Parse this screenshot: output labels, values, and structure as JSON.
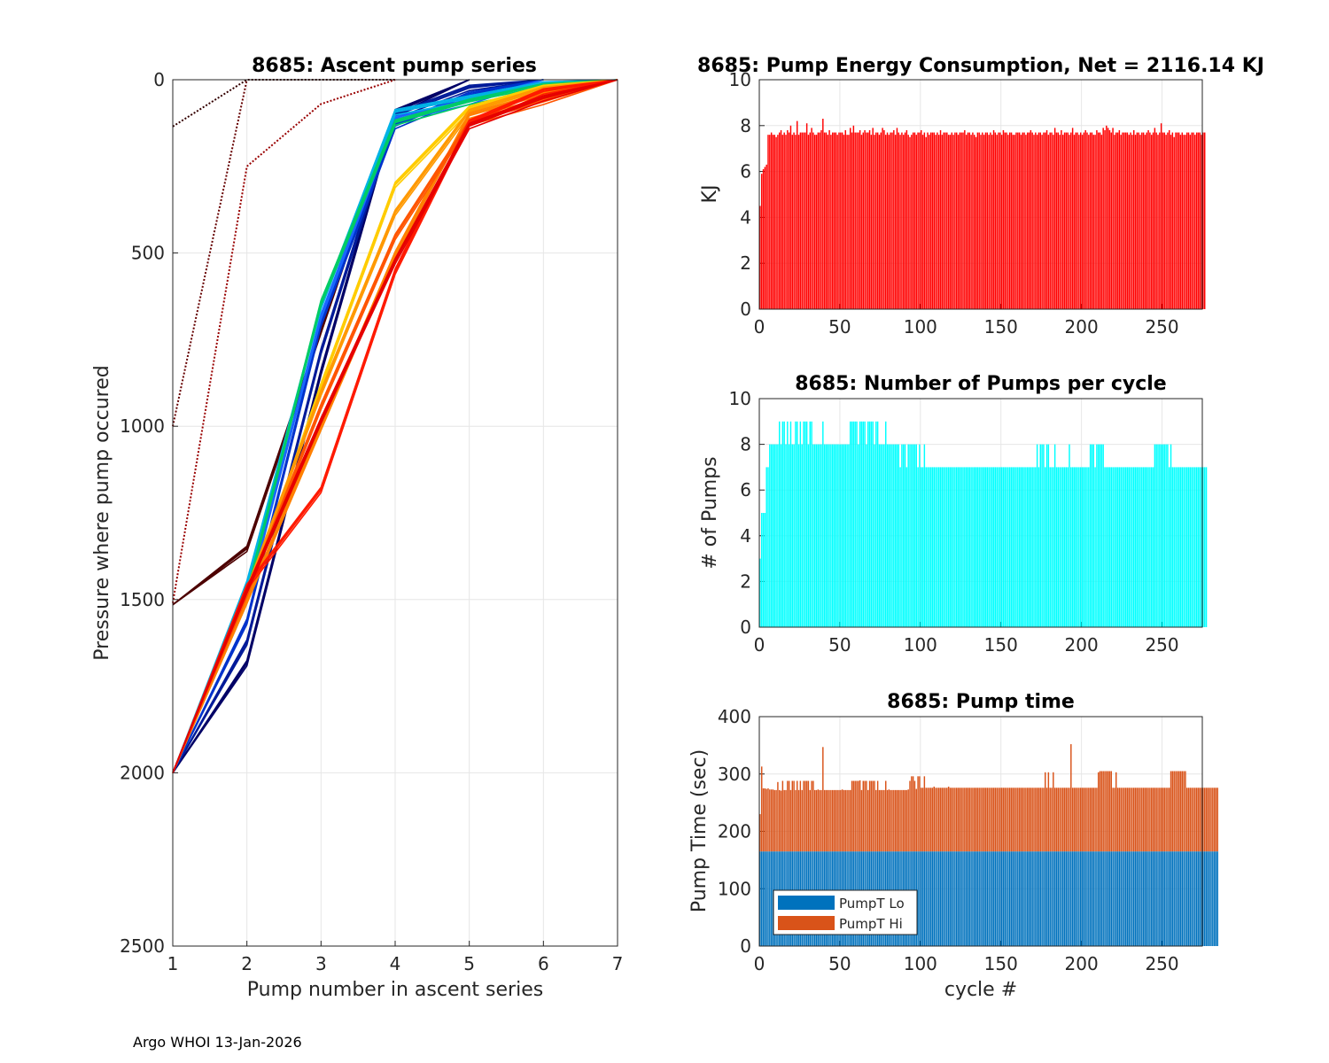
{
  "footer": "Argo WHOI 13-Jan-2026",
  "chart_data": [
    {
      "type": "line",
      "title": "8685: Ascent pump series",
      "xlabel": "Pump number in ascent series",
      "ylabel": "Pressure where pump occured",
      "xlim": [
        1,
        7
      ],
      "ylim": [
        0,
        2500
      ],
      "y_reversed": true,
      "xticks": [
        1,
        2,
        3,
        4,
        5,
        6,
        7
      ],
      "yticks": [
        0,
        500,
        1000,
        1500,
        2000,
        2500
      ],
      "grid": true,
      "color_mapping": "line color varies by cycle: dark red (early) through blue/cyan to orange/red (late)",
      "series": [
        {
          "name": "cycle 0",
          "color": "#330000",
          "style": "dotted",
          "x": [
            1,
            2,
            3,
            4
          ],
          "y": [
            135,
            0,
            0,
            0
          ]
        },
        {
          "name": "cycle 1",
          "color": "#660000",
          "style": "dotted",
          "x": [
            1,
            2
          ],
          "y": [
            1000,
            0
          ]
        },
        {
          "name": "cycle 2",
          "color": "#990000",
          "style": "dotted",
          "x": [
            1,
            2,
            3,
            4
          ],
          "y": [
            1510,
            250,
            70,
            0
          ]
        },
        {
          "name": "cycle 3",
          "color": "#4d0000",
          "style": "solid",
          "x": [
            1,
            2,
            3,
            4
          ],
          "y": [
            1515,
            1350,
            720,
            100
          ]
        },
        {
          "name": "cycle 5",
          "color": "#000066",
          "style": "solid",
          "x": [
            1,
            2,
            3,
            4,
            5
          ],
          "y": [
            2000,
            1680,
            840,
            90,
            0
          ]
        },
        {
          "name": "cycle 30",
          "color": "#001a99",
          "style": "solid",
          "x": [
            1,
            2,
            3,
            4,
            5,
            6
          ],
          "y": [
            2000,
            1620,
            780,
            100,
            20,
            0
          ]
        },
        {
          "name": "cycle 60",
          "color": "#0033cc",
          "style": "solid",
          "x": [
            1,
            2,
            3,
            4,
            5,
            6
          ],
          "y": [
            2000,
            1560,
            700,
            130,
            40,
            0
          ]
        },
        {
          "name": "cycle 90",
          "color": "#1a66ff",
          "style": "solid",
          "x": [
            1,
            2,
            3,
            4,
            5,
            6
          ],
          "y": [
            2000,
            1500,
            680,
            110,
            60,
            0
          ]
        },
        {
          "name": "cycle 120",
          "color": "#00b3e6",
          "style": "solid",
          "x": [
            1,
            2,
            3,
            4,
            5,
            6,
            7
          ],
          "y": [
            2000,
            1450,
            650,
            90,
            50,
            10,
            0
          ]
        },
        {
          "name": "cycle 150",
          "color": "#00cc66",
          "style": "solid",
          "x": [
            1,
            2,
            3,
            4,
            5,
            6,
            7
          ],
          "y": [
            2000,
            1480,
            640,
            120,
            60,
            15,
            0
          ]
        },
        {
          "name": "cycle 180",
          "color": "#ffcc00",
          "style": "solid",
          "x": [
            1,
            2,
            3,
            4,
            5,
            6,
            7
          ],
          "y": [
            2000,
            1500,
            880,
            300,
            80,
            20,
            0
          ]
        },
        {
          "name": "cycle 210",
          "color": "#ff9900",
          "style": "solid",
          "x": [
            1,
            2,
            3,
            4,
            5,
            6,
            7
          ],
          "y": [
            2000,
            1470,
            900,
            380,
            90,
            25,
            0
          ]
        },
        {
          "name": "cycle 240",
          "color": "#ff8000",
          "style": "solid",
          "x": [
            1,
            2,
            3,
            4,
            5,
            6,
            7
          ],
          "y": [
            2000,
            1500,
            1000,
            500,
            100,
            40,
            0
          ]
        },
        {
          "name": "cycle 260",
          "color": "#ff5500",
          "style": "solid",
          "x": [
            1,
            2,
            3,
            4,
            5,
            6,
            7
          ],
          "y": [
            2000,
            1480,
            940,
            450,
            120,
            60,
            0
          ]
        },
        {
          "name": "cycle 270",
          "color": "#ff1a00",
          "style": "solid",
          "x": [
            1,
            2,
            3,
            4,
            5,
            6,
            7
          ],
          "y": [
            2000,
            1460,
            1180,
            550,
            120,
            30,
            0
          ]
        },
        {
          "name": "cycle 275",
          "color": "#e60000",
          "style": "solid",
          "x": [
            1,
            2,
            3,
            4,
            5,
            6,
            7
          ],
          "y": [
            2000,
            1470,
            980,
            520,
            130,
            50,
            0
          ]
        }
      ]
    },
    {
      "type": "bar",
      "title": "8685: Pump Energy Consumption,  Net = 2116.14 KJ",
      "xlabel": "",
      "ylabel": "KJ",
      "xlim": [
        0,
        275
      ],
      "ylim": [
        0,
        10
      ],
      "xticks": [
        0,
        50,
        100,
        150,
        200,
        250
      ],
      "yticks": [
        0,
        2,
        4,
        6,
        8,
        10
      ],
      "grid": true,
      "color": "#ff0000",
      "x_start": 0,
      "values": [
        4.5,
        5.9,
        6.1,
        6.2,
        6.3,
        7.6,
        7.6,
        7.7,
        7.6,
        7.6,
        7.5,
        7.6,
        7.7,
        7.8,
        7.6,
        7.7,
        7.6,
        7.8,
        7.7,
        8.0,
        7.6,
        7.7,
        7.6,
        8.2,
        7.6,
        7.7,
        7.7,
        7.7,
        7.7,
        8.1,
        7.6,
        7.7,
        7.9,
        7.7,
        7.6,
        7.6,
        7.7,
        7.7,
        7.8,
        8.3,
        7.7,
        7.7,
        7.6,
        7.8,
        7.6,
        7.7,
        7.7,
        7.7,
        7.6,
        7.7,
        7.7,
        7.7,
        7.6,
        7.8,
        7.6,
        7.6,
        7.9,
        7.7,
        8.0,
        7.7,
        7.7,
        7.7,
        7.8,
        7.6,
        7.7,
        7.8,
        7.7,
        7.7,
        7.8,
        7.6,
        7.9,
        7.6,
        7.7,
        7.7,
        7.6,
        7.7,
        7.9,
        7.8,
        7.6,
        7.7,
        7.6,
        7.7,
        7.7,
        7.8,
        7.6,
        7.9,
        7.7,
        7.6,
        7.7,
        7.6,
        7.7,
        7.8,
        7.6,
        7.5,
        7.6,
        7.7,
        7.7,
        7.6,
        7.7,
        7.7,
        7.8,
        7.6,
        7.7,
        7.5,
        7.7,
        7.6,
        7.7,
        7.7,
        7.7,
        7.6,
        7.7,
        7.6,
        7.8,
        7.6,
        7.7,
        7.7,
        7.7,
        7.6,
        7.6,
        7.7,
        7.6,
        7.7,
        7.7,
        7.6,
        7.7,
        7.7,
        7.7,
        7.8,
        7.6,
        7.7,
        7.7,
        7.6,
        7.7,
        7.6,
        7.5,
        7.7,
        7.7,
        7.6,
        7.7,
        7.6,
        7.7,
        7.7,
        7.6,
        7.7,
        7.6,
        7.8,
        7.7,
        7.6,
        7.7,
        7.7,
        7.6,
        7.8,
        7.7,
        7.7,
        7.6,
        7.7,
        7.7,
        7.6,
        7.6,
        7.7,
        7.7,
        7.7,
        7.6,
        7.7,
        7.7,
        7.6,
        7.7,
        7.7,
        7.8,
        7.7,
        7.6,
        7.7,
        7.6,
        7.7,
        7.7,
        7.6,
        7.7,
        7.7,
        7.8,
        7.6,
        7.7,
        7.7,
        7.6,
        7.9,
        7.7,
        7.7,
        7.6,
        7.8,
        7.6,
        7.7,
        7.7,
        7.7,
        7.6,
        7.7,
        7.9,
        7.6,
        7.7,
        7.7,
        7.6,
        7.7,
        7.6,
        7.7,
        7.8,
        7.7,
        7.6,
        7.7,
        7.7,
        7.6,
        7.6,
        7.8,
        7.7,
        7.7,
        7.6,
        7.9,
        7.8,
        8.0,
        7.9,
        7.8,
        7.7,
        7.9,
        7.6,
        7.7,
        7.7,
        7.8,
        7.6,
        7.7,
        7.7,
        7.7,
        7.7,
        7.6,
        7.7,
        7.6,
        7.8,
        7.6,
        7.7,
        7.7,
        7.6,
        7.7,
        7.7,
        7.6,
        7.7,
        7.8,
        7.7,
        7.6,
        7.7,
        7.9,
        7.7,
        7.6,
        7.7,
        8.1,
        7.7,
        7.7,
        7.6,
        7.7,
        7.8,
        7.6,
        7.7,
        7.5,
        7.7,
        7.7,
        7.7,
        7.6,
        7.7,
        7.6,
        7.6,
        7.7,
        7.7,
        7.6,
        7.7,
        7.7,
        7.6,
        7.7,
        7.7,
        7.7,
        7.6,
        7.7,
        7.7
      ]
    },
    {
      "type": "bar",
      "title": "8685: Number of Pumps per cycle",
      "xlabel": "",
      "ylabel": "# of Pumps",
      "xlim": [
        0,
        275
      ],
      "ylim": [
        0,
        10
      ],
      "xticks": [
        0,
        50,
        100,
        150,
        200,
        250
      ],
      "yticks": [
        0,
        2,
        4,
        6,
        8,
        10
      ],
      "grid": true,
      "color": "#00ffff",
      "x_start": 0,
      "values": [
        3,
        5,
        5,
        5,
        7,
        7,
        8,
        8,
        8,
        8,
        8,
        8,
        9,
        8,
        9,
        9,
        8,
        9,
        8,
        9,
        8,
        8,
        9,
        9,
        8,
        9,
        8,
        9,
        9,
        9,
        8,
        9,
        9,
        8,
        8,
        8,
        8,
        8,
        8,
        9,
        8,
        8,
        8,
        8,
        8,
        8,
        8,
        8,
        8,
        8,
        8,
        8,
        8,
        8,
        8,
        8,
        9,
        9,
        9,
        9,
        9,
        8,
        9,
        9,
        9,
        9,
        8,
        9,
        9,
        9,
        9,
        8,
        9,
        9,
        8,
        8,
        8,
        8,
        9,
        8,
        8,
        8,
        8,
        8,
        8,
        8,
        8,
        7,
        8,
        8,
        8,
        7,
        8,
        8,
        8,
        8,
        8,
        8,
        7,
        8,
        7,
        7,
        8,
        7,
        7,
        7,
        7,
        7,
        7,
        7,
        7,
        7,
        7,
        7,
        7,
        7,
        7,
        7,
        7,
        7,
        7,
        7,
        7,
        7,
        7,
        7,
        7,
        7,
        7,
        7,
        7,
        7,
        7,
        7,
        7,
        7,
        7,
        7,
        7,
        7,
        7,
        7,
        7,
        7,
        7,
        7,
        7,
        7,
        7,
        7,
        7,
        7,
        7,
        7,
        7,
        7,
        7,
        7,
        7,
        7,
        7,
        7,
        7,
        7,
        7,
        7,
        7,
        7,
        7,
        7,
        7,
        7,
        8,
        7,
        8,
        8,
        8,
        7,
        8,
        8,
        7,
        7,
        7,
        8,
        7,
        7,
        7,
        7,
        7,
        7,
        7,
        7,
        8,
        7,
        7,
        7,
        7,
        7,
        7,
        7,
        7,
        7,
        7,
        7,
        7,
        8,
        8,
        8,
        7,
        8,
        8,
        8,
        8,
        8,
        7,
        7,
        7,
        7,
        7,
        7,
        7,
        7,
        7,
        7,
        7,
        7,
        7,
        7,
        7,
        7,
        7,
        7,
        7,
        7,
        7,
        7,
        7,
        7,
        7,
        7,
        7,
        7,
        7,
        7,
        7,
        8,
        8,
        8,
        8,
        8,
        8,
        8,
        8,
        8,
        7,
        8,
        7,
        7,
        7,
        7,
        7,
        7,
        7,
        7,
        7,
        7,
        7,
        7,
        7,
        7,
        7,
        7,
        7,
        7,
        7,
        7,
        7,
        7
      ]
    },
    {
      "type": "bar",
      "stacked": true,
      "title": "8685: Pump time",
      "xlabel": "cycle #",
      "ylabel": "Pump Time (sec)",
      "xlim": [
        0,
        275
      ],
      "ylim": [
        0,
        400
      ],
      "xticks": [
        0,
        50,
        100,
        150,
        200,
        250
      ],
      "yticks": [
        0,
        100,
        200,
        300,
        400
      ],
      "grid": true,
      "legend_position": "bottom-left",
      "x_start": 0,
      "series": [
        {
          "name": "PumpT Lo",
          "color": "#0072bd",
          "constant_value": 165
        },
        {
          "name": "PumpT Hi",
          "color": "#d95319",
          "total_values": [
            230,
            313,
            275,
            275,
            274,
            275,
            273,
            273,
            273,
            272,
            272,
            286,
            272,
            271,
            288,
            272,
            272,
            288,
            288,
            272,
            288,
            288,
            272,
            288,
            272,
            288,
            272,
            288,
            288,
            288,
            288,
            272,
            288,
            288,
            272,
            272,
            273,
            272,
            272,
            347,
            272,
            272,
            272,
            272,
            272,
            272,
            272,
            272,
            272,
            272,
            272,
            273,
            272,
            272,
            272,
            272,
            272,
            288,
            288,
            288,
            288,
            288,
            289,
            272,
            288,
            288,
            288,
            272,
            288,
            288,
            288,
            288,
            272,
            288,
            272,
            272,
            272,
            272,
            288,
            272,
            273,
            272,
            272,
            272,
            272,
            272,
            272,
            272,
            272,
            272,
            272,
            272,
            273,
            288,
            296,
            296,
            288,
            274,
            296,
            296,
            276,
            276,
            296,
            276,
            276,
            276,
            276,
            276,
            278,
            276,
            276,
            276,
            276,
            276,
            276,
            276,
            276,
            278,
            276,
            276,
            276,
            276,
            276,
            276,
            276,
            276,
            276,
            276,
            276,
            276,
            276,
            276,
            276,
            276,
            276,
            276,
            276,
            276,
            276,
            276,
            276,
            276,
            276,
            276,
            276,
            276,
            276,
            276,
            276,
            276,
            276,
            276,
            276,
            276,
            276,
            276,
            276,
            276,
            276,
            276,
            276,
            276,
            276,
            276,
            276,
            276,
            276,
            276,
            276,
            276,
            276,
            276,
            276,
            276,
            276,
            276,
            276,
            303,
            276,
            303,
            276,
            276,
            303,
            276,
            276,
            276,
            276,
            276,
            276,
            276,
            276,
            276,
            276,
            352,
            276,
            276,
            276,
            276,
            276,
            276,
            276,
            276,
            276,
            276,
            276,
            276,
            276,
            276,
            276,
            276,
            303,
            305,
            305,
            305,
            305,
            305,
            305,
            305,
            305,
            276,
            276,
            303,
            276,
            276,
            276,
            276,
            276,
            276,
            276,
            276,
            276,
            276,
            276,
            276,
            276,
            276,
            276,
            276,
            276,
            276,
            276,
            276,
            276,
            276,
            276,
            276,
            276,
            276,
            276,
            276,
            276,
            276,
            276,
            276,
            276,
            305,
            305,
            305,
            305,
            305,
            305,
            305,
            305,
            305,
            305,
            276,
            276,
            276,
            276,
            276,
            276,
            276,
            276,
            276,
            276,
            276,
            276,
            276,
            276,
            276,
            276,
            276,
            276,
            276,
            276
          ]
        }
      ]
    }
  ]
}
